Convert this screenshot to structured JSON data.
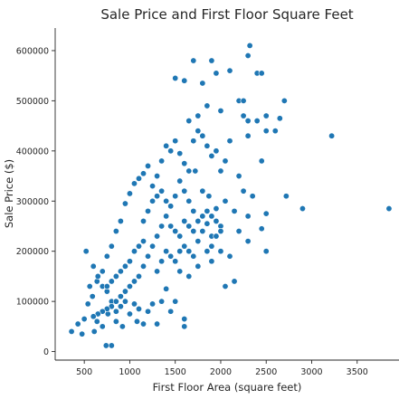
{
  "chart_data": {
    "type": "scatter",
    "title": "Sale Price and First Floor Square Feet",
    "xlabel": "First Floor Area (square feet)",
    "ylabel": "Sale Price ($)",
    "xlim": [
      180,
      3960
    ],
    "ylim": [
      -17000,
      645000
    ],
    "x_ticks": [
      500,
      1000,
      1500,
      2000,
      2500,
      3000,
      3500
    ],
    "y_ticks": [
      0,
      100000,
      200000,
      300000,
      400000,
      500000,
      600000
    ],
    "grid": false,
    "legend": null,
    "marker_color": "#1f77b4",
    "points": [
      [
        360,
        40000
      ],
      [
        430,
        55000
      ],
      [
        475,
        35000
      ],
      [
        500,
        65000
      ],
      [
        520,
        200000
      ],
      [
        540,
        95000
      ],
      [
        560,
        130000
      ],
      [
        610,
        40000
      ],
      [
        640,
        60000
      ],
      [
        700,
        50000
      ],
      [
        740,
        12000
      ],
      [
        800,
        12000
      ],
      [
        760,
        75000
      ],
      [
        850,
        60000
      ],
      [
        920,
        50000
      ],
      [
        1000,
        75000
      ],
      [
        1080,
        60000
      ],
      [
        1150,
        55000
      ],
      [
        1300,
        55000
      ],
      [
        1600,
        65000
      ],
      [
        1600,
        50000
      ],
      [
        590,
        110000
      ],
      [
        640,
        140000
      ],
      [
        700,
        160000
      ],
      [
        750,
        190000
      ],
      [
        800,
        210000
      ],
      [
        850,
        240000
      ],
      [
        900,
        260000
      ],
      [
        950,
        295000
      ],
      [
        1000,
        315000
      ],
      [
        1050,
        335000
      ],
      [
        1100,
        345000
      ],
      [
        1150,
        355000
      ],
      [
        1200,
        370000
      ],
      [
        1250,
        330000
      ],
      [
        1300,
        350000
      ],
      [
        1350,
        380000
      ],
      [
        1400,
        410000
      ],
      [
        1450,
        400000
      ],
      [
        1500,
        420000
      ],
      [
        1550,
        395000
      ],
      [
        1600,
        375000
      ],
      [
        1650,
        360000
      ],
      [
        1700,
        420000
      ],
      [
        1750,
        440000
      ],
      [
        1800,
        430000
      ],
      [
        1850,
        410000
      ],
      [
        1900,
        390000
      ],
      [
        1950,
        400000
      ],
      [
        2000,
        360000
      ],
      [
        2050,
        380000
      ],
      [
        2100,
        420000
      ],
      [
        2200,
        350000
      ],
      [
        2300,
        430000
      ],
      [
        2400,
        460000
      ],
      [
        2450,
        380000
      ],
      [
        2500,
        470000
      ],
      [
        2600,
        440000
      ],
      [
        2700,
        500000
      ],
      [
        1500,
        545000
      ],
      [
        1600,
        540000
      ],
      [
        1700,
        580000
      ],
      [
        1800,
        535000
      ],
      [
        1900,
        580000
      ],
      [
        1950,
        555000
      ],
      [
        2100,
        560000
      ],
      [
        2200,
        500000
      ],
      [
        2300,
        590000
      ],
      [
        2320,
        610000
      ],
      [
        2400,
        555000
      ],
      [
        2450,
        555000
      ],
      [
        2250,
        470000
      ],
      [
        2000,
        480000
      ],
      [
        1850,
        490000
      ],
      [
        1750,
        470000
      ],
      [
        1650,
        460000
      ],
      [
        2250,
        500000
      ],
      [
        2300,
        460000
      ],
      [
        2500,
        440000
      ],
      [
        2650,
        465000
      ],
      [
        2250,
        320000
      ],
      [
        2350,
        310000
      ],
      [
        2050,
        300000
      ],
      [
        2150,
        280000
      ],
      [
        2300,
        270000
      ],
      [
        2450,
        245000
      ],
      [
        2500,
        275000
      ],
      [
        2500,
        200000
      ],
      [
        2200,
        240000
      ],
      [
        2300,
        220000
      ],
      [
        2000,
        200000
      ],
      [
        2100,
        190000
      ],
      [
        1900,
        180000
      ],
      [
        2150,
        140000
      ],
      [
        2050,
        130000
      ],
      [
        1750,
        170000
      ],
      [
        1650,
        150000
      ],
      [
        1550,
        160000
      ],
      [
        1500,
        100000
      ],
      [
        1450,
        80000
      ],
      [
        1400,
        125000
      ],
      [
        1350,
        100000
      ],
      [
        1250,
        95000
      ],
      [
        1200,
        80000
      ],
      [
        1100,
        85000
      ],
      [
        1050,
        95000
      ],
      [
        950,
        100000
      ],
      [
        900,
        90000
      ],
      [
        850,
        80000
      ],
      [
        800,
        100000
      ],
      [
        750,
        120000
      ],
      [
        700,
        130000
      ],
      [
        650,
        150000
      ],
      [
        600,
        170000
      ],
      [
        2720,
        310000
      ],
      [
        2900,
        285000
      ],
      [
        3220,
        430000
      ],
      [
        3850,
        285000
      ],
      [
        1720,
        360000
      ],
      [
        1800,
        320000
      ],
      [
        1870,
        310000
      ],
      [
        1950,
        285000
      ],
      [
        2000,
        250000
      ],
      [
        1900,
        230000
      ],
      [
        1850,
        255000
      ],
      [
        1700,
        280000
      ],
      [
        1650,
        300000
      ],
      [
        1600,
        320000
      ],
      [
        1550,
        340000
      ],
      [
        1500,
        310000
      ],
      [
        1450,
        290000
      ],
      [
        1400,
        270000
      ],
      [
        1350,
        250000
      ],
      [
        1300,
        230000
      ],
      [
        1250,
        210000
      ],
      [
        1200,
        190000
      ],
      [
        1150,
        170000
      ],
      [
        1100,
        150000
      ],
      [
        1050,
        140000
      ],
      [
        1000,
        130000
      ],
      [
        950,
        120000
      ],
      [
        900,
        110000
      ],
      [
        850,
        100000
      ],
      [
        800,
        90000
      ],
      [
        750,
        85000
      ],
      [
        700,
        80000
      ],
      [
        650,
        75000
      ],
      [
        600,
        70000
      ],
      [
        1150,
        260000
      ],
      [
        1200,
        280000
      ],
      [
        1250,
        300000
      ],
      [
        1300,
        310000
      ],
      [
        1350,
        320000
      ],
      [
        1400,
        300000
      ],
      [
        1450,
        250000
      ],
      [
        1500,
        240000
      ],
      [
        1550,
        230000
      ],
      [
        1600,
        210000
      ],
      [
        1650,
        200000
      ],
      [
        1700,
        190000
      ],
      [
        1750,
        220000
      ],
      [
        1800,
        240000
      ],
      [
        1850,
        200000
      ],
      [
        1900,
        210000
      ],
      [
        1950,
        230000
      ],
      [
        2000,
        240000
      ],
      [
        1000,
        180000
      ],
      [
        1050,
        200000
      ],
      [
        1100,
        210000
      ],
      [
        1150,
        220000
      ],
      [
        950,
        170000
      ],
      [
        900,
        160000
      ],
      [
        850,
        150000
      ],
      [
        800,
        140000
      ],
      [
        750,
        130000
      ],
      [
        1300,
        160000
      ],
      [
        1350,
        180000
      ],
      [
        1400,
        200000
      ],
      [
        1450,
        190000
      ],
      [
        1500,
        180000
      ],
      [
        1550,
        200000
      ],
      [
        1600,
        260000
      ],
      [
        1650,
        250000
      ],
      [
        1700,
        240000
      ],
      [
        1750,
        260000
      ],
      [
        1800,
        270000
      ],
      [
        1850,
        280000
      ],
      [
        1900,
        270000
      ],
      [
        1950,
        260000
      ]
    ]
  }
}
